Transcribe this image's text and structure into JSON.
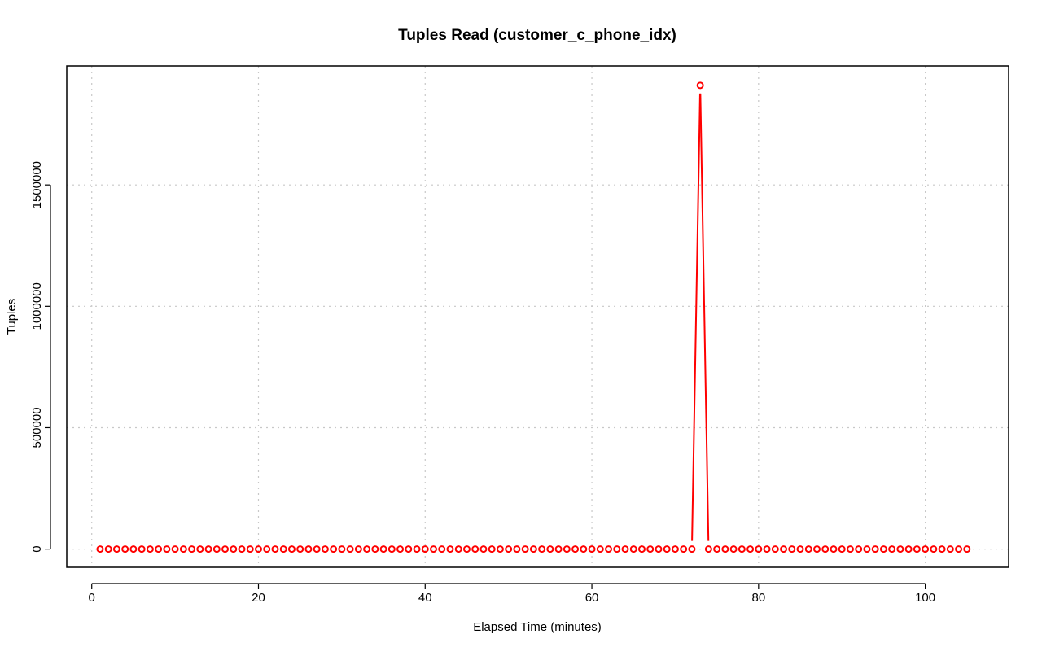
{
  "chart_data": {
    "type": "line",
    "title": "Tuples Read (customer_c_phone_idx)",
    "xlabel": "Elapsed Time (minutes)",
    "ylabel": "Tuples",
    "xlim": [
      -3,
      110
    ],
    "ylim": [
      -75000,
      1990000
    ],
    "x_ticks": [
      0,
      20,
      40,
      60,
      80,
      100
    ],
    "x_tick_labels": [
      "0",
      "20",
      "40",
      "60",
      "80",
      "100"
    ],
    "y_ticks": [
      0,
      500000,
      1000000,
      1500000
    ],
    "y_tick_labels": [
      "0",
      "500000",
      "1000000",
      "1500000"
    ],
    "grid": true,
    "legend": "none",
    "point_style": "open-circle",
    "line_and_points_style": "b",
    "color": "#ff0000",
    "series": [
      {
        "x": [
          1,
          2,
          3,
          4,
          5,
          6,
          7,
          8,
          9,
          10,
          11,
          12,
          13,
          14,
          15,
          16,
          17,
          18,
          19,
          20,
          21,
          22,
          23,
          24,
          25,
          26,
          27,
          28,
          29,
          30,
          31,
          32,
          33,
          34,
          35,
          36,
          37,
          38,
          39,
          40,
          41,
          42,
          43,
          44,
          45,
          46,
          47,
          48,
          49,
          50,
          51,
          52,
          53,
          54,
          55,
          56,
          57,
          58,
          59,
          60,
          61,
          62,
          63,
          64,
          65,
          66,
          67,
          68,
          69,
          70,
          71,
          72,
          73,
          74,
          75,
          76,
          77,
          78,
          79,
          80,
          81,
          82,
          83,
          84,
          85,
          86,
          87,
          88,
          89,
          90,
          91,
          92,
          93,
          94,
          95,
          96,
          97,
          98,
          99,
          100,
          101,
          102,
          103,
          104,
          105
        ],
        "y": [
          0,
          0,
          0,
          0,
          0,
          0,
          0,
          0,
          0,
          0,
          0,
          0,
          0,
          0,
          0,
          0,
          0,
          0,
          0,
          0,
          0,
          0,
          0,
          0,
          0,
          0,
          0,
          0,
          0,
          0,
          0,
          0,
          0,
          0,
          0,
          0,
          0,
          0,
          0,
          0,
          0,
          0,
          0,
          0,
          0,
          0,
          0,
          0,
          0,
          0,
          0,
          0,
          0,
          0,
          0,
          0,
          0,
          0,
          0,
          0,
          0,
          0,
          0,
          0,
          0,
          0,
          0,
          0,
          0,
          0,
          0,
          0,
          1910000,
          0,
          0,
          0,
          0,
          0,
          0,
          0,
          0,
          0,
          0,
          0,
          0,
          0,
          0,
          0,
          0,
          0,
          0,
          0,
          0,
          0,
          0,
          0,
          0,
          0,
          0,
          0,
          0,
          0,
          0,
          0,
          0
        ]
      }
    ]
  }
}
